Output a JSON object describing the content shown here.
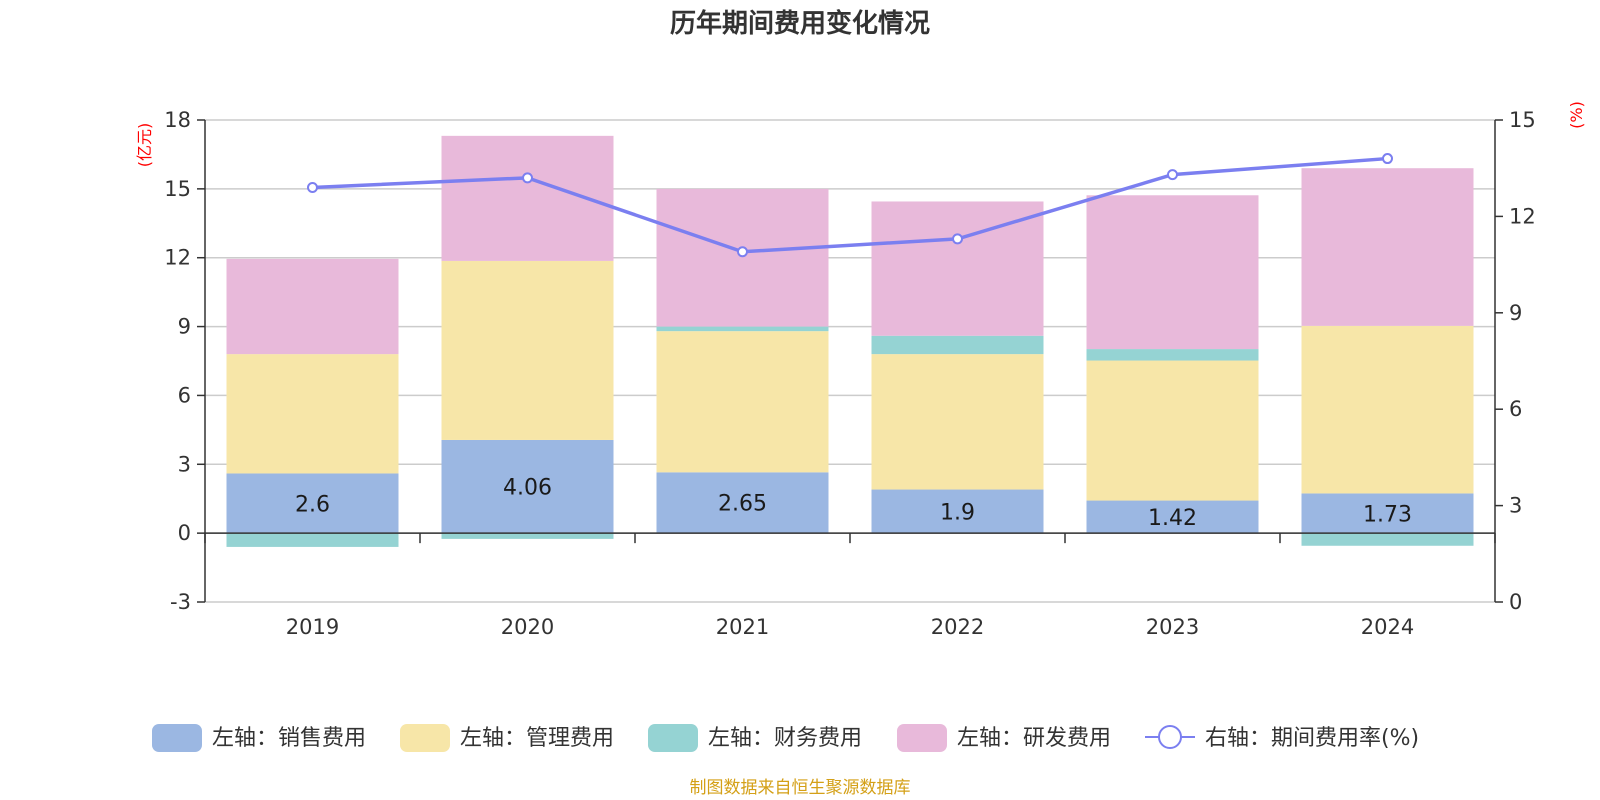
{
  "chart_data": {
    "type": "bar",
    "title": "历年期间费用变化情况",
    "categories": [
      "2019",
      "2020",
      "2021",
      "2022",
      "2023",
      "2024"
    ],
    "y_left": {
      "unit": "(亿元)",
      "min": -3,
      "max": 18,
      "ticks": [
        "-3",
        "0",
        "3",
        "6",
        "9",
        "12",
        "15",
        "18"
      ]
    },
    "y_right": {
      "unit": "(%)",
      "min": 0,
      "max": 15,
      "ticks": [
        "0",
        "3",
        "6",
        "9",
        "12",
        "15"
      ]
    },
    "stacked": true,
    "series": [
      {
        "name": "左轴：销售费用",
        "axis": "left",
        "type": "bar",
        "color": "#9bb7e2",
        "values": [
          2.6,
          4.06,
          2.65,
          1.9,
          1.42,
          1.73
        ],
        "labels": [
          "2.6",
          "4.06",
          "2.65",
          "1.9",
          "1.42",
          "1.73"
        ]
      },
      {
        "name": "左轴：管理费用",
        "axis": "left",
        "type": "bar",
        "color": "#f7e6a8",
        "values": [
          5.2,
          7.8,
          6.15,
          5.9,
          6.1,
          7.3
        ]
      },
      {
        "name": "左轴：财务费用",
        "axis": "left",
        "type": "bar",
        "color": "#95d3d3",
        "values": [
          -0.6,
          -0.25,
          0.2,
          0.8,
          0.5,
          -0.55
        ]
      },
      {
        "name": "左轴：研发费用",
        "axis": "left",
        "type": "bar",
        "color": "#e8b9da",
        "values": [
          4.15,
          5.45,
          6.0,
          5.85,
          6.7,
          6.87
        ]
      },
      {
        "name": "右轴：期间费用率(%)",
        "axis": "right",
        "type": "line",
        "color": "#7b7ff0",
        "values": [
          12.9,
          13.2,
          10.9,
          11.3,
          13.3,
          13.8
        ]
      }
    ],
    "grid": true,
    "legend_position": "bottom"
  },
  "source_note": "制图数据来自恒生聚源数据库"
}
